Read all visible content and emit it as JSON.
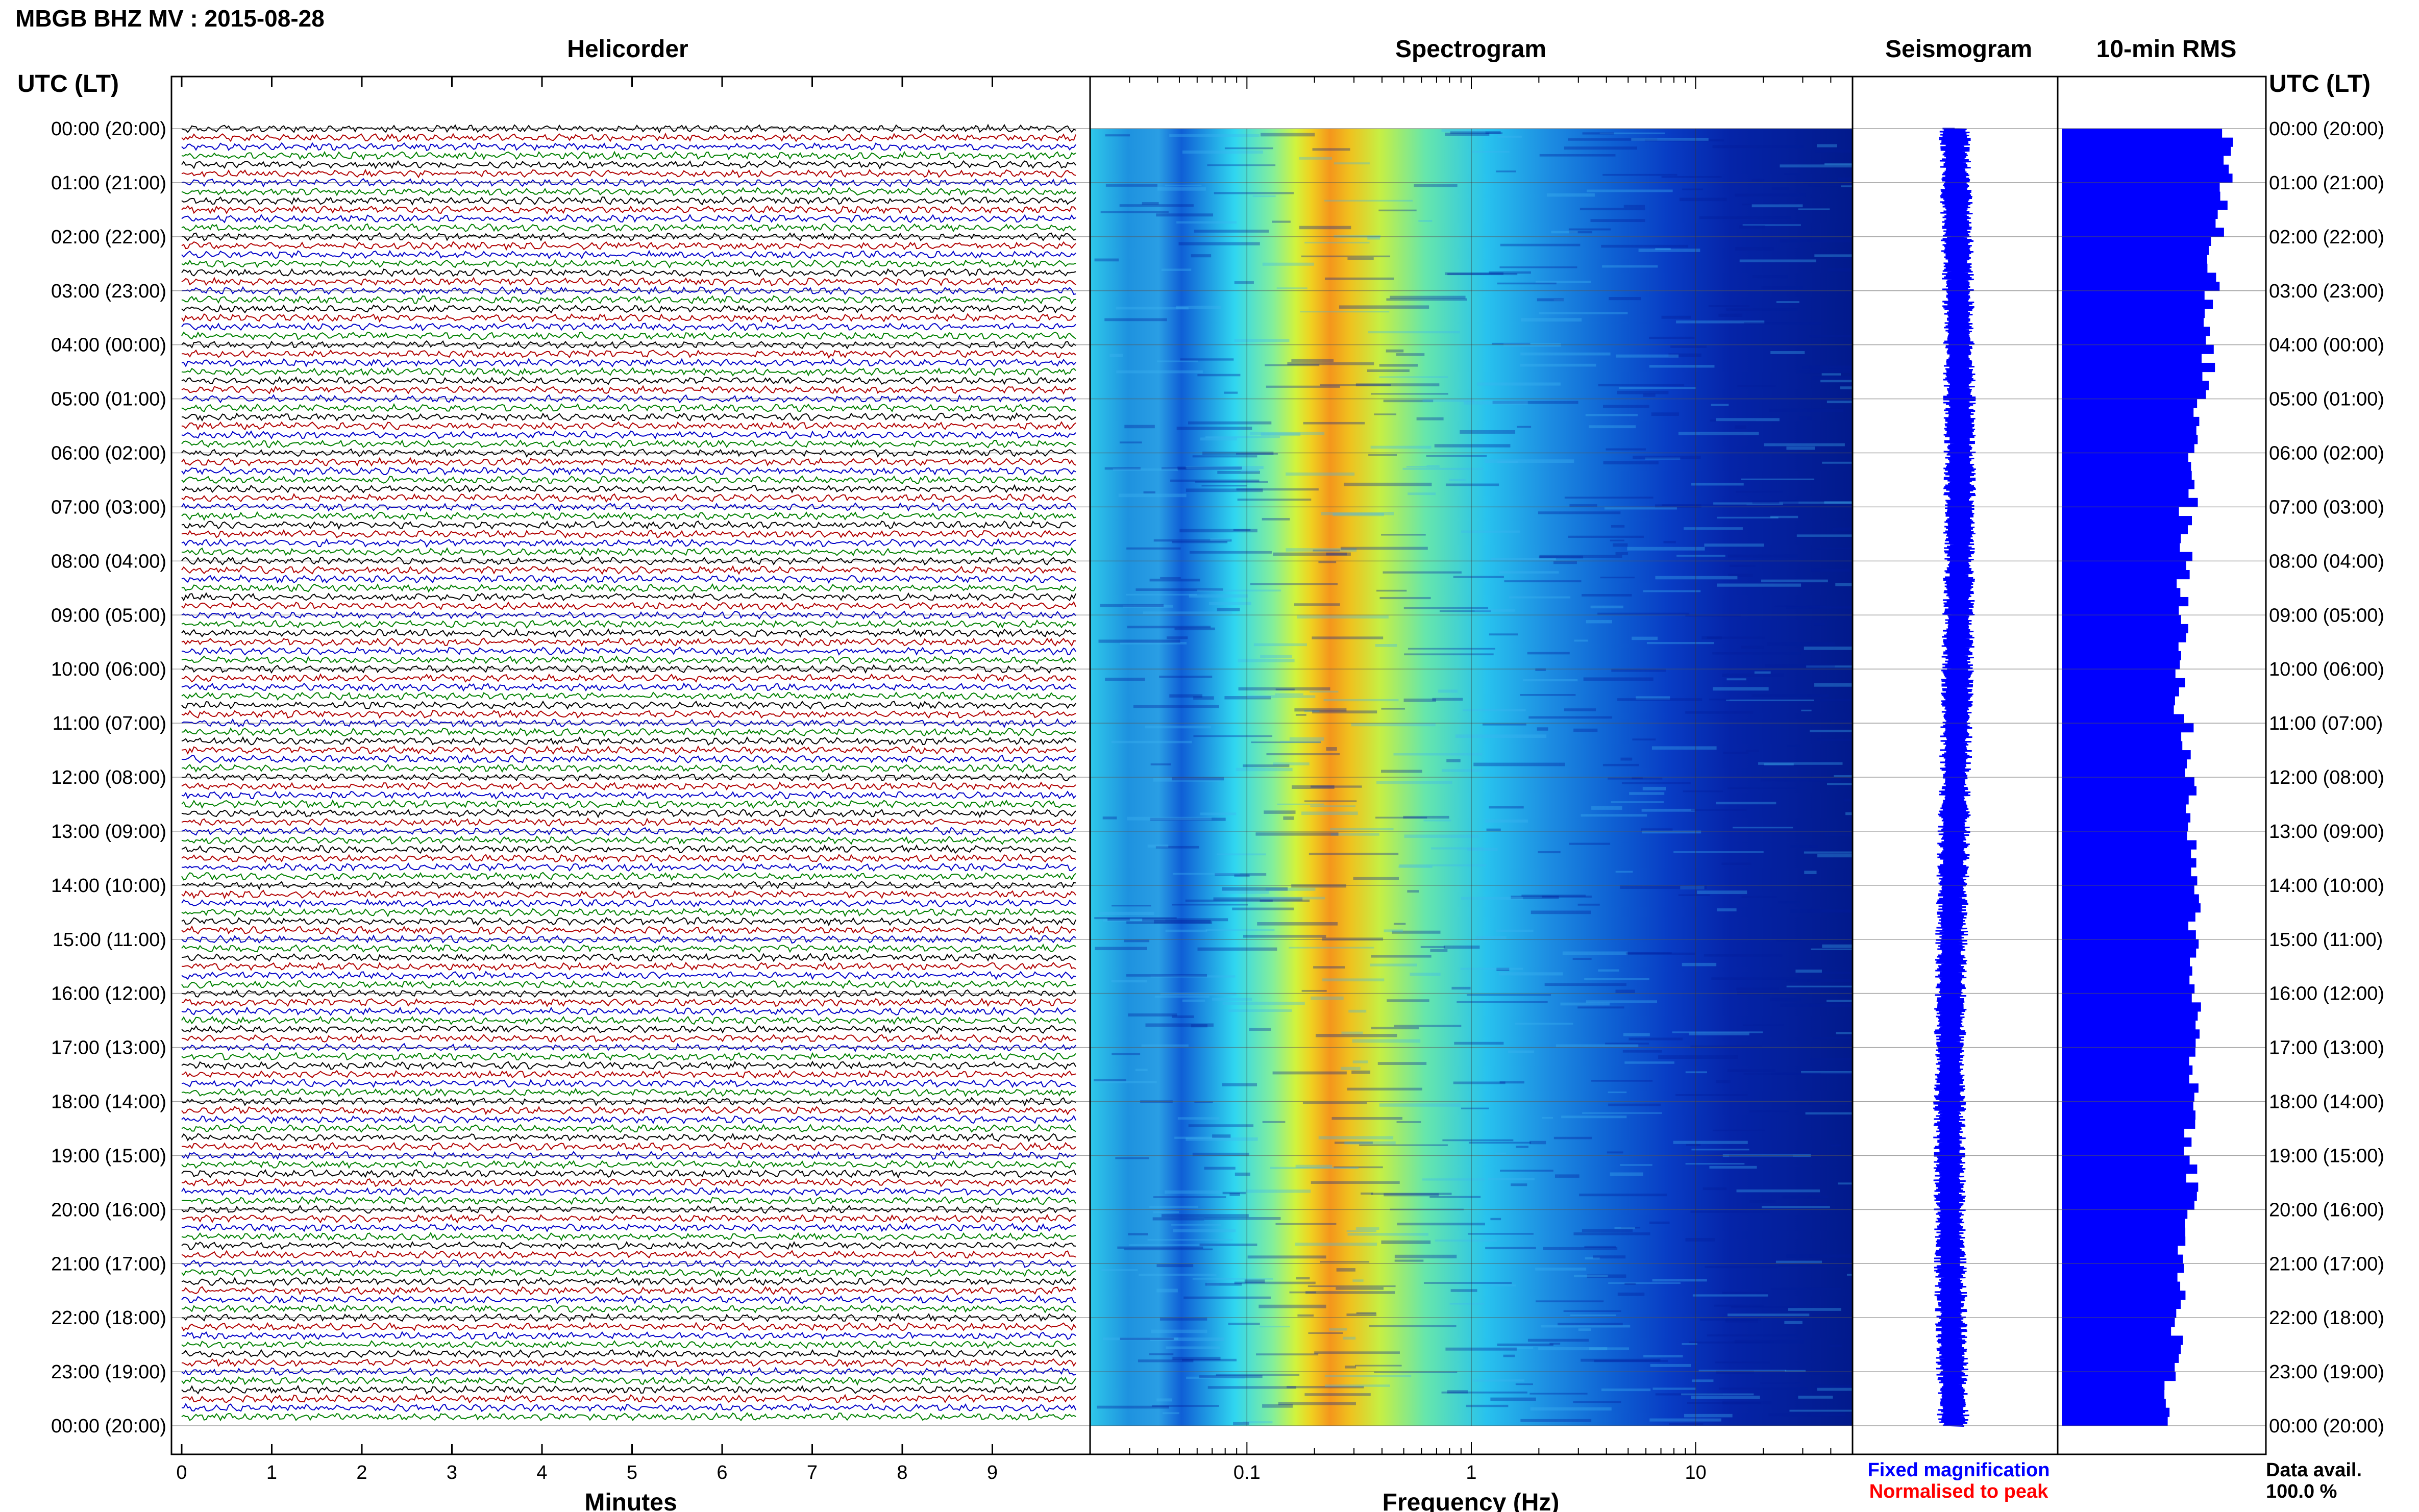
{
  "header": {
    "title": "MBGB BHZ MV : 2015-08-28"
  },
  "panels": {
    "helicorder": "Helicorder",
    "spectrogram": "Spectrogram",
    "seismogram": "Seismogram",
    "rms": "10-min RMS"
  },
  "axes": {
    "left_header": "UTC (LT)",
    "right_header": "UTC (LT)",
    "minutes_label": "Minutes",
    "frequency_label": "Frequency (Hz)"
  },
  "legend": {
    "fixed": "Fixed magnification",
    "normalised": "Normalised to peak",
    "data_avail_label": "Data avail.",
    "data_avail_value": "100.0 %",
    "fixed_color": "#0000ff",
    "normalised_color": "#ff0000"
  },
  "chart_data": {
    "type": "heatmap",
    "title": "MBGB BHZ MV : 2015-08-28",
    "time_labels": [
      "00:00 (20:00)",
      "01:00 (21:00)",
      "02:00 (22:00)",
      "03:00 (23:00)",
      "04:00 (00:00)",
      "05:00 (01:00)",
      "06:00 (02:00)",
      "07:00 (03:00)",
      "08:00 (04:00)",
      "09:00 (05:00)",
      "10:00 (06:00)",
      "11:00 (07:00)",
      "12:00 (08:00)",
      "13:00 (09:00)",
      "14:00 (10:00)",
      "15:00 (11:00)",
      "16:00 (12:00)",
      "17:00 (13:00)",
      "18:00 (14:00)",
      "19:00 (15:00)",
      "20:00 (16:00)",
      "21:00 (17:00)",
      "22:00 (18:00)",
      "23:00 (19:00)",
      "00:00 (20:00)"
    ],
    "helicorder": {
      "xlabel": "Minutes",
      "x_ticks": [
        0,
        1,
        2,
        3,
        4,
        5,
        6,
        7,
        8,
        9
      ],
      "xlim": [
        0,
        10
      ],
      "trace_colors": [
        "#000000",
        "#b00000",
        "#0000c8",
        "#008000"
      ],
      "traces_per_hour": 6
    },
    "spectrogram": {
      "xlabel": "Frequency (Hz)",
      "x_scale": "log",
      "xlim": [
        0.02,
        50
      ],
      "x_tick_labels": [
        {
          "value": 0.1,
          "label": "0.1"
        },
        {
          "value": 1,
          "label": "1"
        },
        {
          "value": 10,
          "label": "10"
        }
      ],
      "peak_frequency_hz": 0.3
    },
    "seismogram": {
      "color": "#0000ff"
    },
    "rms": {
      "color": "#0000ff",
      "hourly_relative": [
        0.9,
        0.86,
        0.82,
        0.8,
        0.79,
        0.74,
        0.7,
        0.67,
        0.66,
        0.65,
        0.64,
        0.68,
        0.69,
        0.7,
        0.72,
        0.72,
        0.73,
        0.72,
        0.7,
        0.71,
        0.66,
        0.64,
        0.62,
        0.58
      ]
    }
  }
}
